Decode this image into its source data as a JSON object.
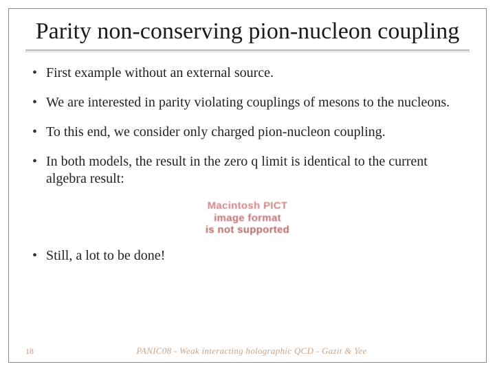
{
  "slide": {
    "title": "Parity non-conserving pion-nucleon coupling",
    "bullets": [
      "First example without an external source.",
      "We are interested in parity violating couplings of mesons to the nucleons.",
      "To this end, we consider only charged pion-nucleon coupling.",
      "In both models, the result in the zero q limit is identical to the current algebra result:",
      "Still, a lot to be done!"
    ],
    "placeholder": {
      "line1": "Macintosh PICT",
      "line2": "image format",
      "line3": "is not supported"
    },
    "footer": {
      "page": "18",
      "text": "PANIC08 - Weak interacting holographic QCD - Gazit & Yee"
    }
  },
  "style": {
    "background": "#ffffff",
    "border_color": "#888888",
    "title_fontsize": 34,
    "bullet_fontsize": 20,
    "footer_color": "#c4a890",
    "page_color": "#b89a8a"
  }
}
